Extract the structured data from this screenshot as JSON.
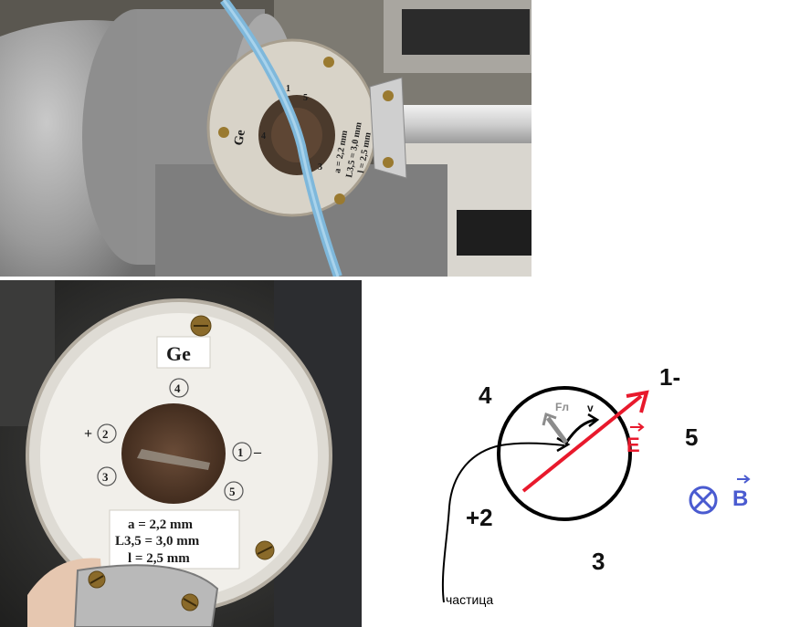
{
  "photo_top": {
    "sample_label": "Ge",
    "contacts": [
      "1",
      "2",
      "3",
      "4",
      "5"
    ],
    "dims": [
      "a = 2,2 mm",
      "L3,5 = 3,0 mm",
      "l = 2,5 mm"
    ]
  },
  "photo_bottom": {
    "sample_label": "Ge",
    "contacts": {
      "c1": "1",
      "c2": "2",
      "c3": "3",
      "c4": "4",
      "c5": "5"
    },
    "plus": "+",
    "minus": "–",
    "dims": [
      "a  = 2,2  mm",
      "L3,5 = 3,0  mm",
      "l  = 2,5  mm"
    ]
  },
  "diagram": {
    "labels": {
      "contact_4": "4",
      "contact_1": "1-",
      "contact_5": "5",
      "contact_2": "+2",
      "contact_3": "3",
      "force": "Fл",
      "velocity": "v",
      "e_field": "E",
      "b_field": "B",
      "particle": "частица"
    },
    "colors": {
      "e_field": "#e8192c",
      "b_field": "#4a5bd0",
      "force": "#8c8c8c",
      "ink": "#000000"
    },
    "icons": [
      "cross-in-circle-icon"
    ]
  }
}
